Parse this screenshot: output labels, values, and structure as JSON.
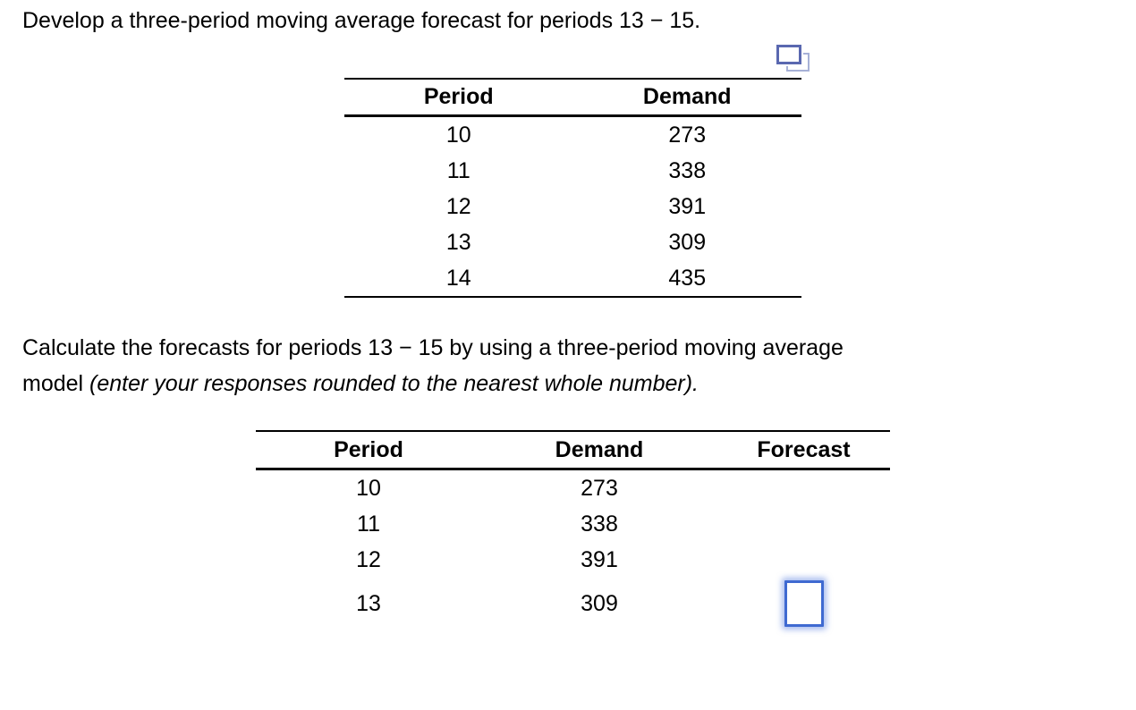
{
  "title": "Develop a three-period moving average forecast for periods 13 − 15.",
  "icons": {
    "copy_icon_name": "copy-icon"
  },
  "colors": {
    "text": "#000000",
    "input_border": "#3f6ad1",
    "input_glow": "rgba(96,133,224,0.55)",
    "copy_icon_front": "#5a68b0",
    "copy_icon_back": "#a7b1d7",
    "table_rule": "#000000"
  },
  "table1": {
    "columns": [
      "Period",
      "Demand"
    ],
    "rows": [
      [
        "10",
        "273"
      ],
      [
        "11",
        "338"
      ],
      [
        "12",
        "391"
      ],
      [
        "13",
        "309"
      ],
      [
        "14",
        "435"
      ]
    ]
  },
  "instruction": {
    "line1": "Calculate the forecasts for periods 13 − 15 by using a three-period moving average",
    "line2_regular": "model ",
    "line2_italic": "(enter your responses rounded to the nearest whole number)."
  },
  "table2": {
    "columns": [
      "Period",
      "Demand",
      "Forecast"
    ],
    "rows": [
      [
        "10",
        "273"
      ],
      [
        "11",
        "338"
      ],
      [
        "12",
        "391"
      ],
      [
        "13",
        "309"
      ]
    ],
    "forecast_input": {
      "value": "",
      "placeholder": ""
    }
  }
}
